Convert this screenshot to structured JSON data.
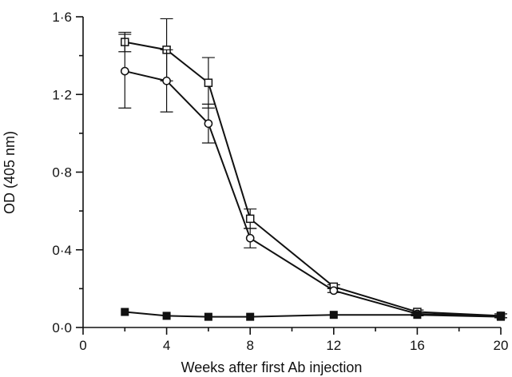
{
  "chart_data": {
    "type": "line",
    "title": "",
    "xlabel": "Weeks after first Ab injection",
    "ylabel": "OD (405 nm)",
    "xlim": [
      0,
      20
    ],
    "ylim": [
      0,
      1.6
    ],
    "x_ticks": [
      0,
      4,
      8,
      12,
      16,
      20
    ],
    "x_minor_ticks": [
      2,
      6,
      10,
      14,
      18
    ],
    "y_ticks": [
      0.0,
      0.4,
      0.8,
      1.2,
      1.6
    ],
    "y_tick_labels": [
      "0·0",
      "0·4",
      "0·8",
      "1·2",
      "1·6"
    ],
    "y_minor_ticks": [
      0.2,
      0.6,
      1.0,
      1.4
    ],
    "grid": false,
    "color": "#111111",
    "series": [
      {
        "marker": "open-square",
        "x": [
          2,
          4,
          6,
          8,
          12,
          16,
          20
        ],
        "y": [
          1.47,
          1.43,
          1.26,
          0.56,
          0.21,
          0.08,
          0.06
        ],
        "err": [
          0.05,
          0.16,
          0.13,
          0.05,
          0.01,
          0.01,
          0.01
        ]
      },
      {
        "marker": "open-circle",
        "x": [
          2,
          4,
          6,
          8,
          12,
          16,
          20
        ],
        "y": [
          1.32,
          1.27,
          1.05,
          0.46,
          0.19,
          0.07,
          0.06
        ],
        "err": [
          0.19,
          0.16,
          0.1,
          0.05,
          0.01,
          0.01,
          0.01
        ]
      },
      {
        "marker": "filled-square",
        "x": [
          2,
          4,
          6,
          8,
          12,
          16,
          20
        ],
        "y": [
          0.08,
          0.06,
          0.055,
          0.055,
          0.065,
          0.065,
          0.055
        ],
        "err": [
          0,
          0,
          0,
          0,
          0,
          0,
          0
        ]
      }
    ]
  }
}
